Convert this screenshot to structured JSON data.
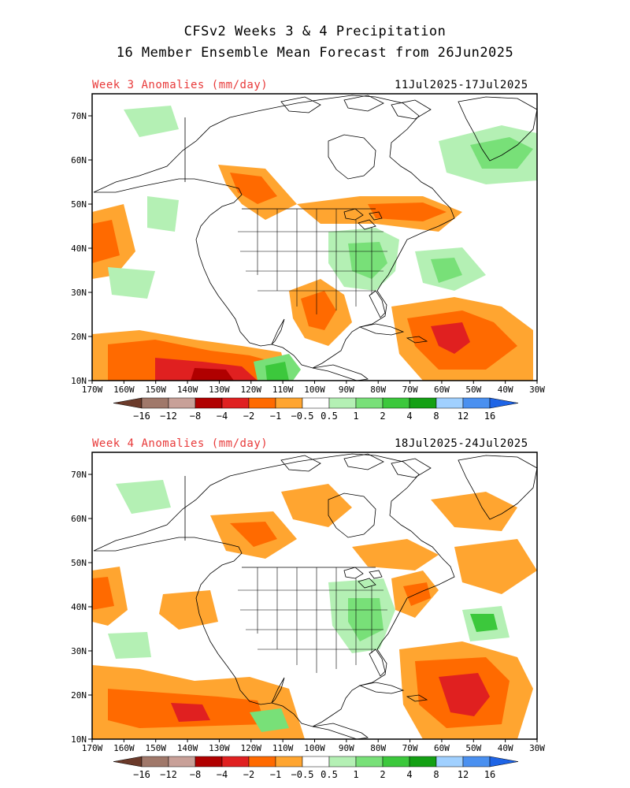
{
  "title": {
    "line1": "CFSv2 Weeks 3 & 4 Precipitation",
    "line2": "16 Member Ensemble Mean Forecast from 26Jun2025"
  },
  "panels": [
    {
      "label": "Week 3 Anomalies (mm/day)",
      "dates": "11Jul2025-17Jul2025",
      "lat_labels": [
        "70N",
        "60N",
        "50N",
        "40N",
        "30N",
        "20N",
        "10N"
      ],
      "lon_labels": [
        "170W",
        "160W",
        "150W",
        "140W",
        "130W",
        "120W",
        "110W",
        "100W",
        "90W",
        "80W",
        "70W",
        "60W",
        "50W",
        "40W",
        "30W"
      ]
    },
    {
      "label": "Week 4 Anomalies (mm/day)",
      "dates": "18Jul2025-24Jul2025",
      "lat_labels": [
        "70N",
        "60N",
        "50N",
        "40N",
        "30N",
        "20N",
        "10N"
      ],
      "lon_labels": [
        "170W",
        "160W",
        "150W",
        "140W",
        "130W",
        "120W",
        "110W",
        "100W",
        "90W",
        "80W",
        "70W",
        "60W",
        "50W",
        "40W",
        "30W"
      ]
    }
  ],
  "colorbar": {
    "labels": [
      "−16",
      "−12",
      "−8",
      "−4",
      "−2",
      "−1",
      "−0.5",
      "0.5",
      "1",
      "2",
      "4",
      "8",
      "12",
      "16"
    ],
    "colors": [
      "#6b3a2a",
      "#a0786a",
      "#c8a098",
      "#b00000",
      "#e02020",
      "#ff6a00",
      "#ffa530",
      "#ffffff",
      "#b4f0b4",
      "#78e078",
      "#3cc83c",
      "#14a014",
      "#a0d0ff",
      "#4a90f0",
      "#1e64e6"
    ]
  },
  "map": {
    "lat_range": [
      10,
      75
    ],
    "lon_range": [
      -170,
      -30
    ],
    "lat_ticks": [
      70,
      60,
      50,
      40,
      30,
      20,
      10
    ],
    "lon_ticks": [
      -170,
      -160,
      -150,
      -140,
      -130,
      -120,
      -110,
      -100,
      -90,
      -80,
      -70,
      -60,
      -50,
      -40,
      -30
    ]
  }
}
